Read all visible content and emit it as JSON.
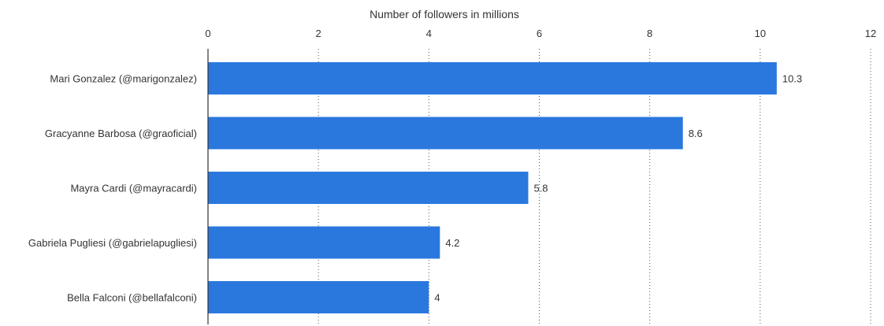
{
  "chart_data": {
    "type": "bar",
    "orientation": "horizontal",
    "title": "",
    "xlabel": "Number of followers in millions",
    "ylabel": "",
    "xlim": [
      0,
      12
    ],
    "ticks": [
      0,
      2,
      4,
      6,
      8,
      10,
      12
    ],
    "tick_labels": [
      "0",
      "2",
      "4",
      "6",
      "8",
      "10",
      "12"
    ],
    "axis_position": "top",
    "grid": true,
    "legend": "none",
    "bar_color": "#2a78de",
    "categories": [
      "Mari Gonzalez (@marigonzalez)",
      "Gracyanne Barbosa (@graoficial)",
      "Mayra Cardi (@mayracardi)",
      "Gabriela Pugliesi (@gabrielapugliesi)",
      "Bella Falconi (@bellafalconi)"
    ],
    "values": [
      10.3,
      8.6,
      5.8,
      4.2,
      4
    ],
    "value_labels": [
      "10.3",
      "8.6",
      "5.8",
      "4.2",
      "4"
    ]
  }
}
